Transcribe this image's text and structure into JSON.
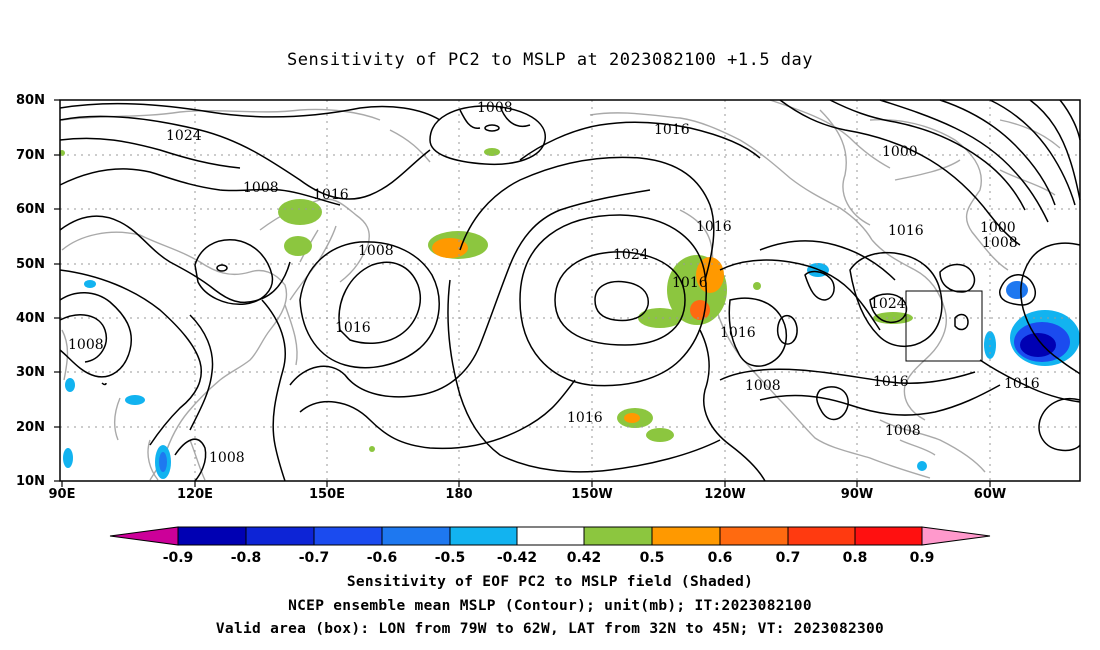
{
  "title": "Sensitivity of PC2 to MSLP at 2023082100 +1.5 day",
  "map": {
    "lat_labels": [
      "80N",
      "70N",
      "60N",
      "50N",
      "40N",
      "30N",
      "20N",
      "10N"
    ],
    "lon_labels": [
      "90E",
      "120E",
      "150E",
      "180",
      "150W",
      "120W",
      "90W",
      "60W"
    ],
    "contour_labels": [
      "1008",
      "1024",
      "1016",
      "1008",
      "1016",
      "1008",
      "1016",
      "1024",
      "1016",
      "1016",
      "1016",
      "1000",
      "1016",
      "1000",
      "1008",
      "1024",
      "1008",
      "1016",
      "1016",
      "1016",
      "1008",
      "1008",
      "1008"
    ],
    "valid_box": {
      "lon_from": "79W",
      "lon_to": "62W",
      "lat_from": "32N",
      "lat_to": "45N"
    }
  },
  "colorbar": {
    "ticks": [
      "-0.9",
      "-0.8",
      "-0.7",
      "-0.6",
      "-0.5",
      "-0.42",
      "0.42",
      "0.5",
      "0.6",
      "0.7",
      "0.8",
      "0.9"
    ],
    "colors": [
      "#cc0099",
      "#0000b3",
      "#0d24d6",
      "#1b4bef",
      "#1e78f0",
      "#12b3f0",
      "#ffffff",
      "#8cc63f",
      "#ff9900",
      "#ff6a10",
      "#ff3a10",
      "#ff1010",
      "#ff99cc"
    ]
  },
  "caption": {
    "line1": "Sensitivity of EOF PC2 to MSLP field (Shaded)",
    "line2": "NCEP ensemble mean MSLP (Contour); unit(mb); IT:2023082100",
    "line3": "Valid area (box): LON from 79W to 62W, LAT from 32N to 45N; VT: 2023082300"
  }
}
